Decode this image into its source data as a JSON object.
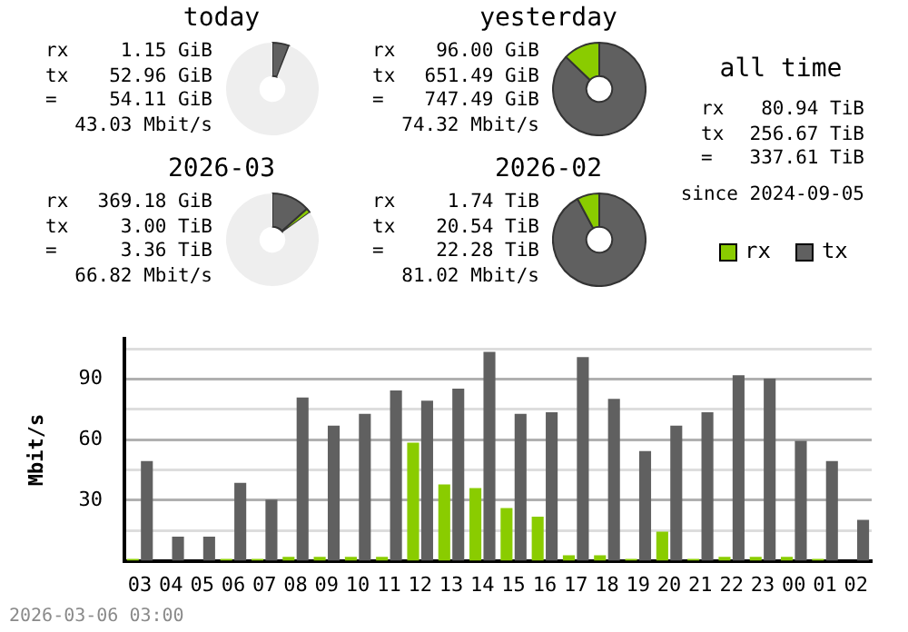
{
  "chart_data": [
    {
      "type": "donut",
      "title": "today",
      "annotations": [
        "rx",
        "1.15 GiB",
        "tx",
        "52.96 GiB",
        "=",
        "54.11 GiB",
        "43.03 Mbit/s"
      ],
      "categories": [
        null,
        null,
        null
      ],
      "values": [
        5.87,
        0.13,
        94
      ],
      "colors": [
        "#606060",
        "#8acc00",
        "#eeeeee"
      ]
    },
    {
      "type": "donut",
      "title": "yesterday",
      "annotations": [
        "rx",
        "96.00 GiB",
        "tx",
        "651.49 GiB",
        "=",
        "747.49 GiB",
        "74.32 Mbit/s"
      ],
      "categories": [
        null,
        null,
        null
      ],
      "values": [
        87.2,
        12.8,
        0
      ],
      "colors": [
        "#606060",
        "#8acc00",
        "#eeeeee"
      ]
    },
    {
      "type": "other",
      "title": "all time",
      "annotations": [
        "rx",
        "80.94 TiB",
        "tx",
        "256.67 TiB",
        "=",
        "337.61 TiB",
        "since 2024-09-05"
      ]
    },
    {
      "type": "donut",
      "title": "2026-03",
      "annotations": [
        "rx",
        "369.18 GiB",
        "tx",
        "3.00 TiB",
        "=",
        "3.36 TiB",
        "66.82 Mbit/s"
      ],
      "categories": [
        null,
        null,
        null
      ],
      "values": [
        13.4,
        1.6,
        85
      ],
      "colors": [
        "#606060",
        "#8acc00",
        "#eeeeee"
      ]
    },
    {
      "type": "donut",
      "title": "2026-02",
      "annotations": [
        "rx",
        "1.74 TiB",
        "tx",
        "20.54 TiB",
        "=",
        "22.28 TiB",
        "81.02 Mbit/s"
      ],
      "categories": [
        null,
        null,
        null
      ],
      "values": [
        92.2,
        7.8,
        0
      ],
      "colors": [
        "#606060",
        "#8acc00",
        "#eeeeee"
      ]
    },
    {
      "type": "bar",
      "ylabel": "Mbit/s",
      "annotations": [
        "2026-03-06 03:00"
      ],
      "categories": [
        "03",
        "04",
        "05",
        "06",
        "07",
        "08",
        "09",
        "10",
        "11",
        "12",
        "13",
        "14",
        "15",
        "16",
        "17",
        "18",
        "19",
        "20",
        "21",
        "22",
        "23",
        "00",
        "01",
        "02"
      ],
      "series": [
        {
          "name": "rx",
          "color": "#8acc00",
          "values": [
            1,
            0,
            0,
            1,
            1,
            2,
            2,
            2,
            2,
            58.6,
            37.8,
            36.1,
            26.1,
            21.9,
            2.8,
            2.8,
            1,
            14.4,
            1,
            2,
            2,
            2,
            1,
            0
          ]
        },
        {
          "name": "tx",
          "color": "#606060",
          "values": [
            49.4,
            12,
            12,
            38.6,
            30.3,
            81,
            67,
            72.8,
            84.4,
            79.4,
            85.3,
            103.6,
            72.8,
            73.6,
            101,
            80.3,
            54.4,
            67,
            73.6,
            92,
            90.3,
            59.4,
            49.4,
            20.3
          ]
        }
      ],
      "ylim": [
        0,
        110
      ],
      "yticks": [
        {
          "value": 15,
          "label": null
        },
        30,
        {
          "value": 45,
          "label": null
        },
        60,
        {
          "value": 75,
          "label": null
        },
        90,
        {
          "value": 105,
          "label": null
        }
      ],
      "grid": "y",
      "legend": "top right"
    }
  ]
}
